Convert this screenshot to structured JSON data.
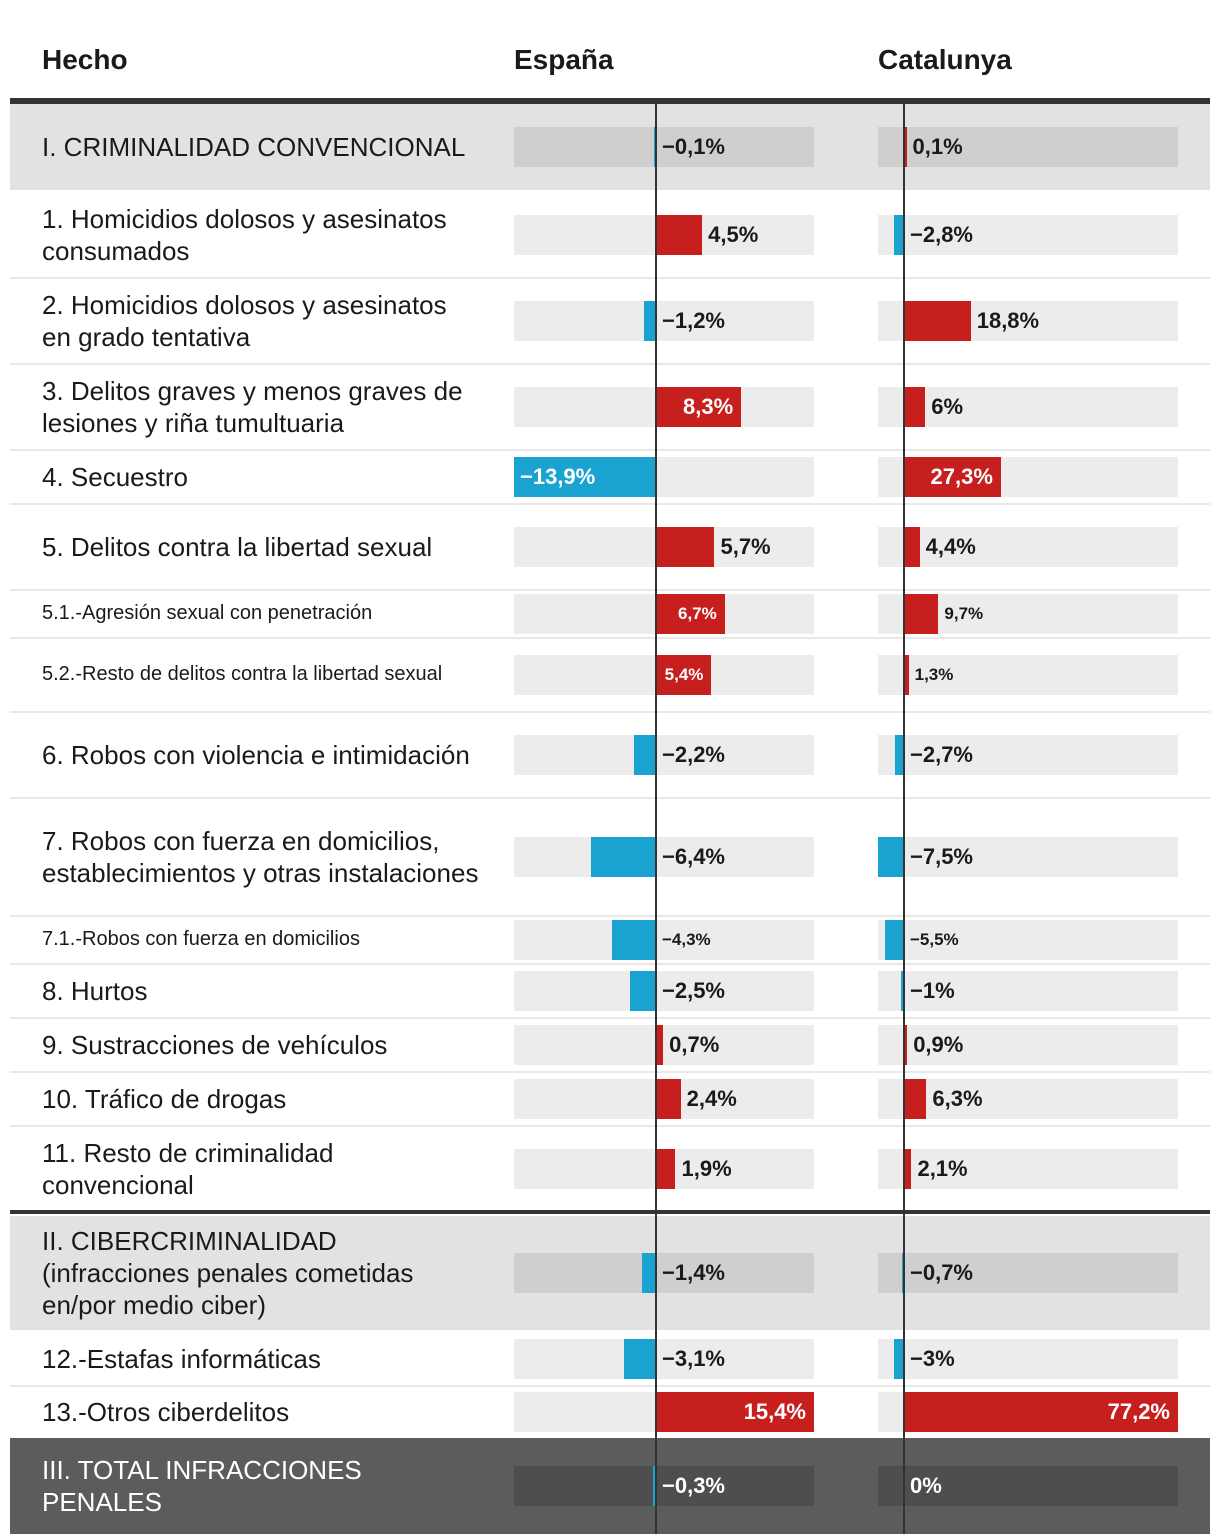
{
  "header": {
    "col_hecho": "Hecho",
    "col_espana": "España",
    "col_catalunya": "Catalunya"
  },
  "colors": {
    "positive": "#c71e1e",
    "negative": "#1aa3d0"
  },
  "chart_data": {
    "type": "bar",
    "orientation": "horizontal",
    "series_names": [
      "España",
      "Catalunya"
    ],
    "domain_espana": [
      -13.9,
      15.4
    ],
    "domain_catalunya": [
      -7.5,
      77.2
    ],
    "rows": [
      {
        "label": "I. CRIMINALIDAD CONVENCIONAL",
        "kind": "group",
        "espana": -0.1,
        "catalunya": 0.1,
        "espana_text": "−0,1%",
        "catalunya_text": "0,1%"
      },
      {
        "label": "1. Homicidios dolosos y asesinatos consumados",
        "kind": "normal",
        "espana": 4.5,
        "catalunya": -2.8,
        "espana_text": "4,5%",
        "catalunya_text": "−2,8%"
      },
      {
        "label": "2. Homicidios dolosos y asesinatos en grado tentativa",
        "kind": "normal",
        "espana": -1.2,
        "catalunya": 18.8,
        "espana_text": "−1,2%",
        "catalunya_text": "18,8%"
      },
      {
        "label": "3. Delitos graves y menos graves de lesiones y riña tumultuaria",
        "kind": "normal",
        "espana": 8.3,
        "catalunya": 6,
        "espana_text": "8,3%",
        "catalunya_text": "6%"
      },
      {
        "label": "4. Secuestro",
        "kind": "normal",
        "espana": -13.9,
        "catalunya": 27.3,
        "espana_text": "−13,9%",
        "catalunya_text": "27,3%"
      },
      {
        "label": "5. Delitos contra la libertad sexual",
        "kind": "normal",
        "espana": 5.7,
        "catalunya": 4.4,
        "espana_text": "5,7%",
        "catalunya_text": "4,4%"
      },
      {
        "label": "5.1.-Agresión sexual con penetración",
        "kind": "sub",
        "espana": 6.7,
        "catalunya": 9.7,
        "espana_text": "6,7%",
        "catalunya_text": "9,7%"
      },
      {
        "label": "5.2.-Resto de delitos contra la libertad sexual",
        "kind": "sub",
        "espana": 5.4,
        "catalunya": 1.3,
        "espana_text": "5,4%",
        "catalunya_text": "1,3%"
      },
      {
        "label": "6. Robos con violencia e intimidación",
        "kind": "normal",
        "espana": -2.2,
        "catalunya": -2.7,
        "espana_text": "−2,2%",
        "catalunya_text": "−2,7%"
      },
      {
        "label": "7. Robos con fuerza en domicilios, establecimientos y otras instalaciones",
        "kind": "normal",
        "espana": -6.4,
        "catalunya": -7.5,
        "espana_text": "−6,4%",
        "catalunya_text": "−7,5%"
      },
      {
        "label": "7.1.-Robos con fuerza en domicilios",
        "kind": "sub",
        "espana": -4.3,
        "catalunya": -5.5,
        "espana_text": "−4,3%",
        "catalunya_text": "−5,5%"
      },
      {
        "label": "8. Hurtos",
        "kind": "normal",
        "espana": -2.5,
        "catalunya": -1,
        "espana_text": "−2,5%",
        "catalunya_text": "−1%"
      },
      {
        "label": "9. Sustracciones de vehículos",
        "kind": "normal",
        "espana": 0.7,
        "catalunya": 0.9,
        "espana_text": "0,7%",
        "catalunya_text": "0,9%"
      },
      {
        "label": "10. Tráfico de drogas",
        "kind": "normal",
        "espana": 2.4,
        "catalunya": 6.3,
        "espana_text": "2,4%",
        "catalunya_text": "6,3%"
      },
      {
        "label": "11. Resto de criminalidad convencional",
        "kind": "normal",
        "espana": 1.9,
        "catalunya": 2.1,
        "espana_text": "1,9%",
        "catalunya_text": "2,1%"
      },
      {
        "label": "II. CIBERCRIMINALIDAD (infracciones penales cometidas en/por medio ciber)",
        "kind": "group",
        "espana": -1.4,
        "catalunya": -0.7,
        "espana_text": "−1,4%",
        "catalunya_text": "−0,7%"
      },
      {
        "label": "12.-Estafas informáticas",
        "kind": "normal",
        "espana": -3.1,
        "catalunya": -3,
        "espana_text": "−3,1%",
        "catalunya_text": "−3%"
      },
      {
        "label": "13.-Otros ciberdelitos",
        "kind": "normal",
        "espana": 15.4,
        "catalunya": 77.2,
        "espana_text": "15,4%",
        "catalunya_text": "77,2%"
      },
      {
        "label": "III. TOTAL INFRACCIONES PENALES",
        "kind": "total",
        "espana": -0.3,
        "catalunya": 0,
        "espana_text": "−0,3%",
        "catalunya_text": "0%"
      }
    ]
  }
}
